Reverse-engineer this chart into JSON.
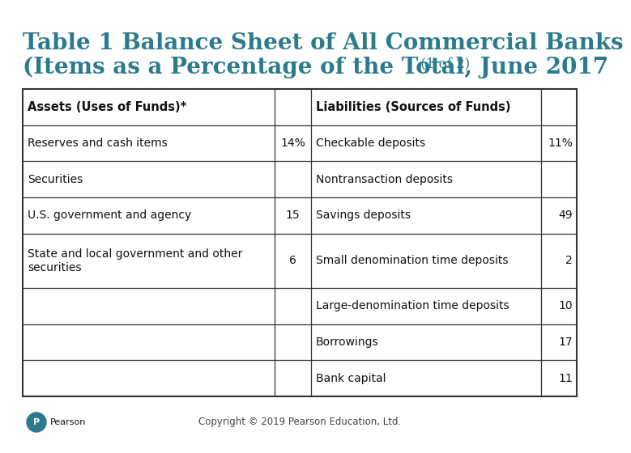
{
  "title_line1": "Table 1 Balance Sheet of All Commercial Banks",
  "title_line2": "(Items as a Percentage of the Total, June 2017",
  "title_suffix": " (1 of 2)",
  "title_color": "#2B7B8C",
  "title_fontsize": 20,
  "title_suffix_fontsize": 12,
  "background_color": "#FFFFFF",
  "border_color": "#333333",
  "text_color": "#111111",
  "copyright_text": "Copyright © 2019 Pearson Education, Ltd.",
  "pearson_circle_color": "#2B7B8C",
  "rows": [
    [
      "Assets (Uses of Funds)*",
      "",
      "Liabilities (Sources of Funds)",
      ""
    ],
    [
      "Reserves and cash items",
      "14%",
      "Checkable deposits",
      "11%"
    ],
    [
      "Securities",
      "",
      "Nontransaction deposits",
      ""
    ],
    [
      "U.S. government and agency",
      "15",
      "Savings deposits",
      "49"
    ],
    [
      "State and local government and other\nsecurities",
      "6",
      "Small denomination time deposits",
      "2"
    ],
    [
      "",
      "",
      "Large-denomination time deposits",
      "10"
    ],
    [
      "",
      "",
      "Borrowings",
      "17"
    ],
    [
      "",
      "",
      "Bank capital",
      "11"
    ]
  ],
  "font_size": 10,
  "header_font_size": 10.5
}
